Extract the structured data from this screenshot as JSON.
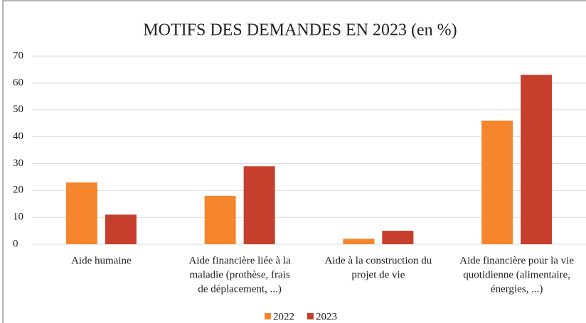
{
  "chart_data": {
    "type": "bar",
    "title": "MOTIFS DES DEMANDES EN 2023 (en %)",
    "categories": [
      [
        "Aide humaine"
      ],
      [
        "Aide financière liée à la",
        "maladie (prothèse, frais",
        "de déplacement, ...)"
      ],
      [
        "Aide à la construction du",
        "projet de vie"
      ],
      [
        "Aide financière pour la vie",
        "quotidienne (alimentaire,",
        "énergies, ...)"
      ]
    ],
    "series": [
      {
        "name": "2022",
        "color": "#f5862e",
        "values": [
          23,
          18,
          2,
          46
        ]
      },
      {
        "name": "2023",
        "color": "#c63f2c",
        "values": [
          11,
          29,
          5,
          63
        ]
      }
    ],
    "ylim": [
      0,
      70
    ],
    "yticks": [
      0,
      10,
      20,
      30,
      40,
      50,
      60,
      70
    ],
    "grid": true,
    "legend": "bottom"
  }
}
